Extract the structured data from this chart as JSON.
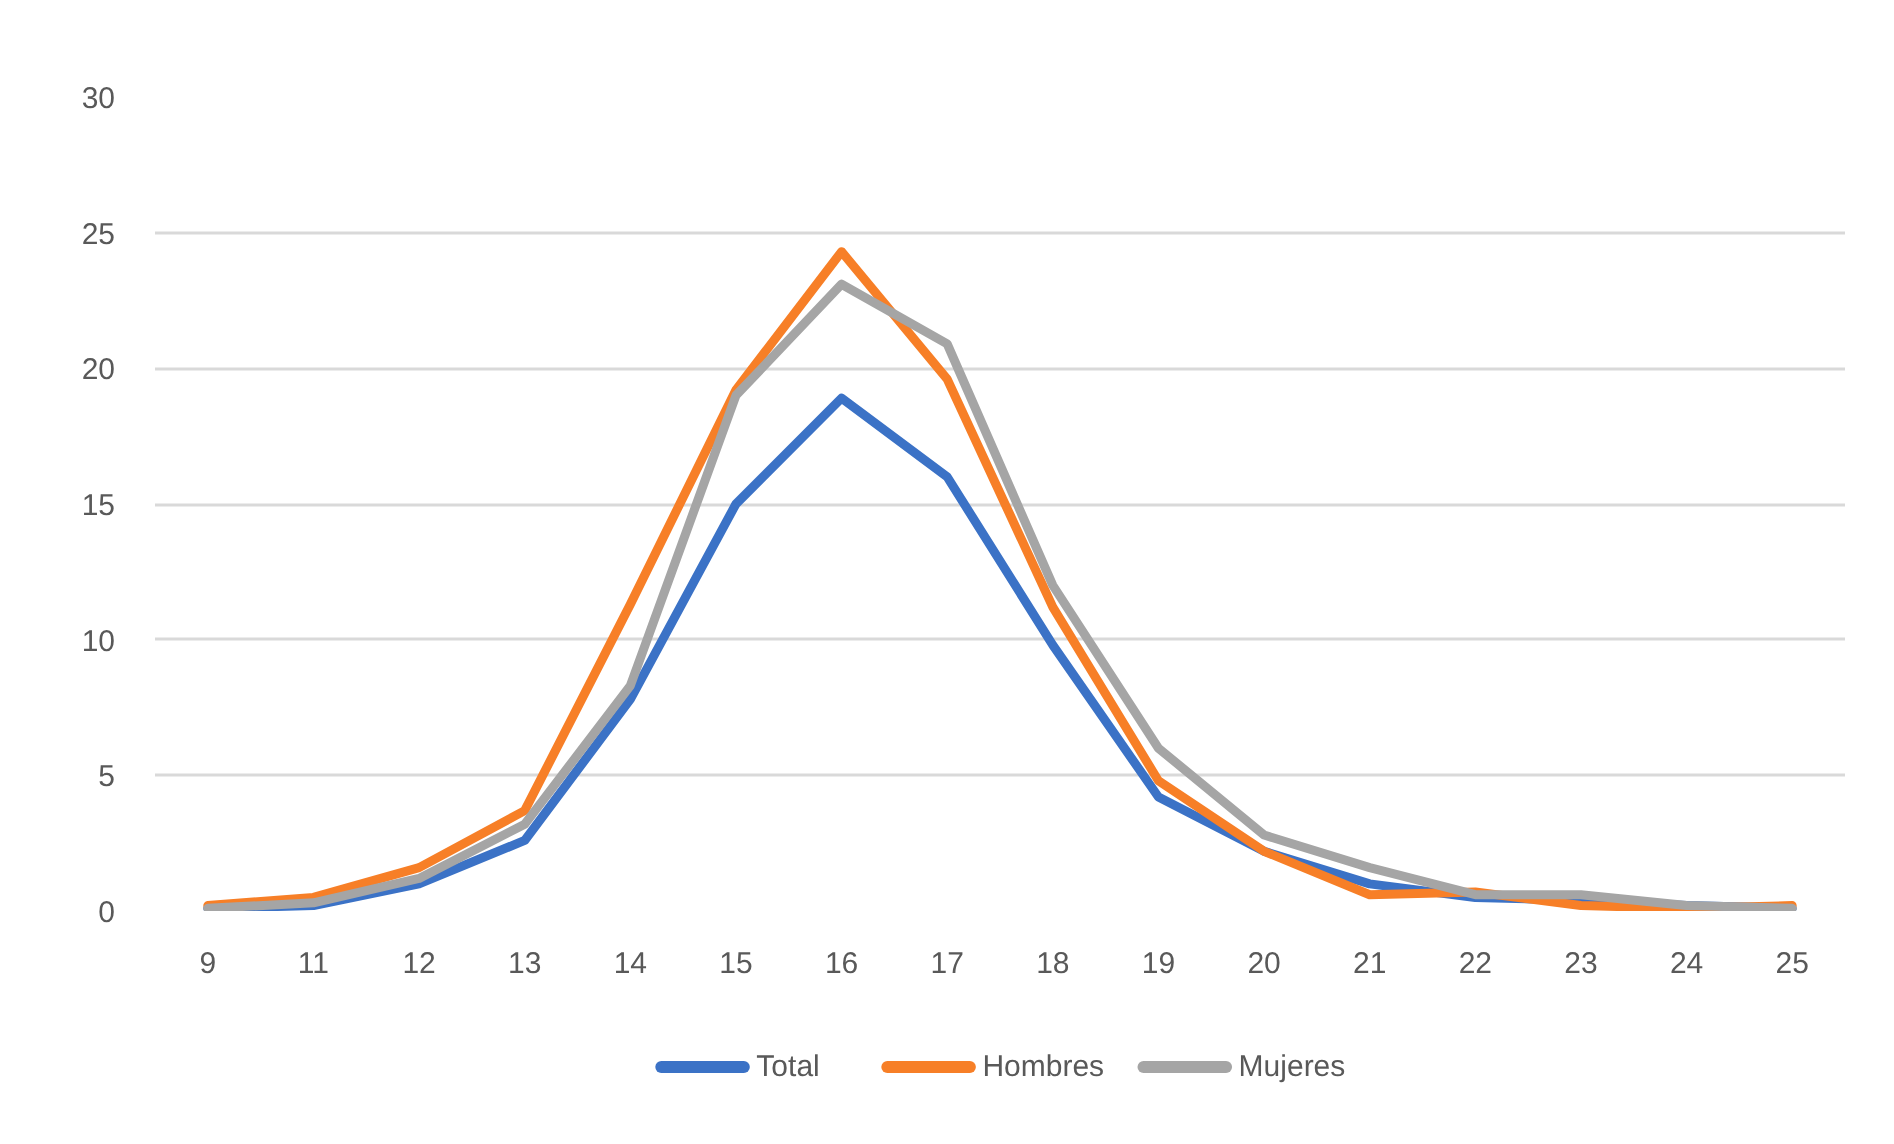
{
  "chart_data": {
    "type": "line",
    "categories": [
      "9",
      "11",
      "12",
      "13",
      "14",
      "15",
      "16",
      "17",
      "18",
      "19",
      "20",
      "21",
      "22",
      "23",
      "24",
      "25"
    ],
    "series": [
      {
        "name": "Total",
        "color": "#3b72c6",
        "values": [
          0.1,
          0.2,
          1.0,
          2.6,
          7.8,
          15.0,
          18.9,
          16.0,
          9.8,
          4.2,
          2.2,
          1.0,
          0.5,
          0.4,
          0.2,
          0.1
        ]
      },
      {
        "name": "Hombres",
        "color": "#f77f27",
        "values": [
          0.2,
          0.5,
          1.6,
          3.7,
          11.3,
          19.2,
          24.3,
          19.6,
          11.2,
          4.8,
          2.2,
          0.6,
          0.7,
          0.2,
          0.1,
          0.2
        ]
      },
      {
        "name": "Mujeres",
        "color": "#a5a5a5",
        "values": [
          0.1,
          0.3,
          1.2,
          3.2,
          8.3,
          19.0,
          23.1,
          20.9,
          12.0,
          6.0,
          2.8,
          1.6,
          0.6,
          0.6,
          0.2,
          0.1
        ]
      }
    ],
    "ylim": [
      0,
      30
    ],
    "yticks": [
      0,
      5,
      10,
      15,
      20,
      25,
      30
    ],
    "grid": "y",
    "legend": "bottom"
  }
}
